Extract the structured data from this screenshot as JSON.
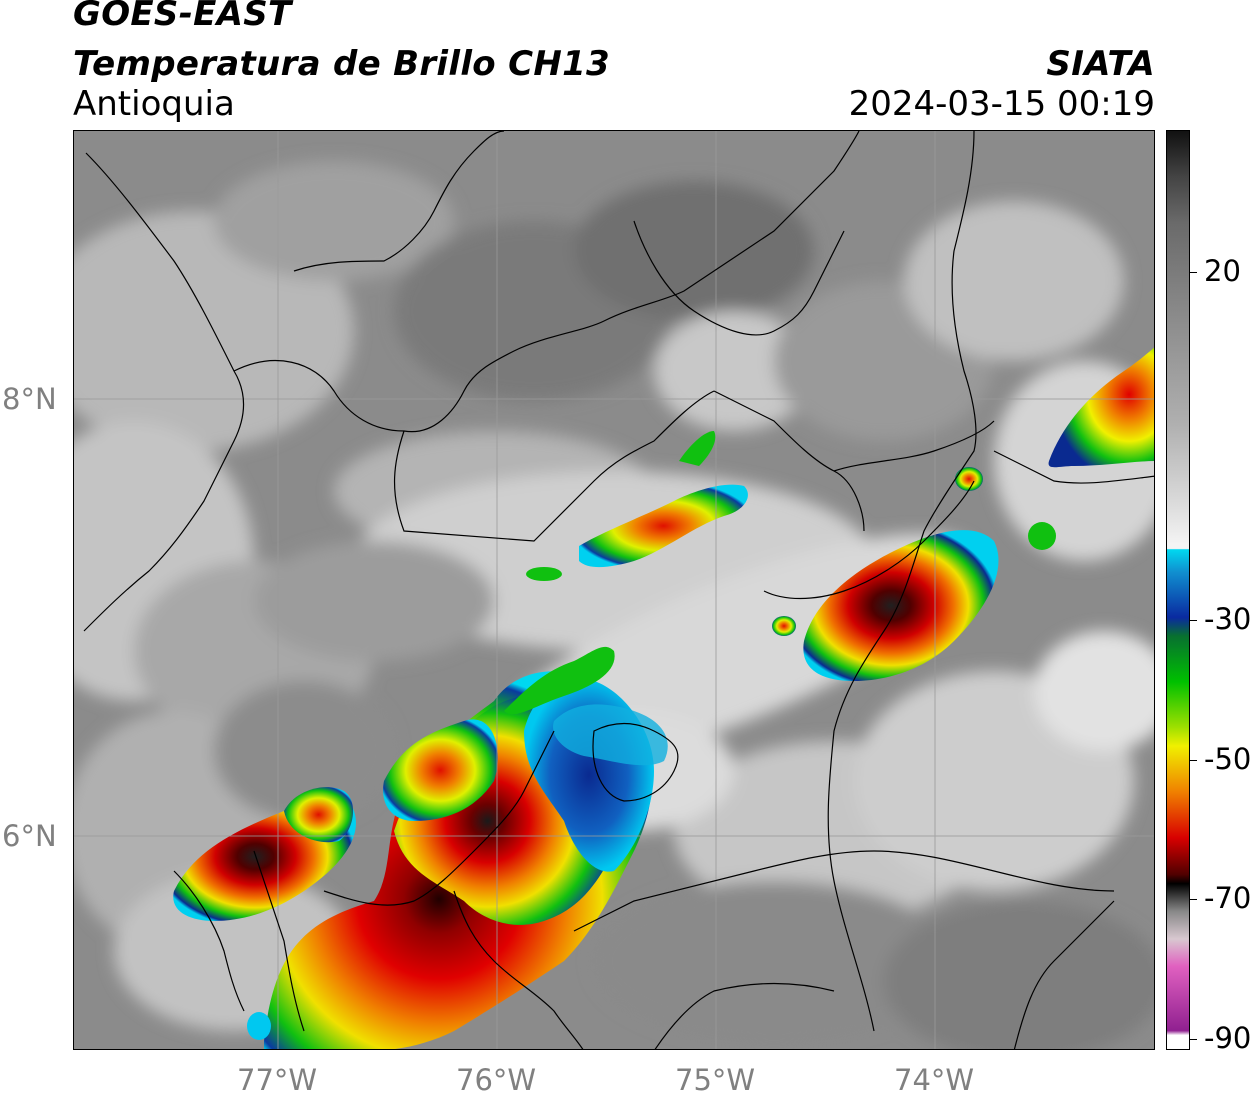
{
  "header": {
    "satellite": "GOES-EAST",
    "product": "Temperatura de Brillo CH13",
    "region": "Antioquia",
    "source": "SIATA",
    "datetime": "2024-03-15 00:19"
  },
  "map": {
    "lat_labels": [
      "8°N",
      "6°N"
    ],
    "lon_labels": [
      "77°W",
      "76°W",
      "75°W",
      "74°W"
    ]
  },
  "colorbar": {
    "labels": [
      "20",
      "-30",
      "-50",
      "-70",
      "-90"
    ],
    "colors": {
      "black": "#111111",
      "white": "#f4f4f4",
      "cyan": "#00d8f0",
      "blue": "#0a2aa0",
      "green": "#00c000",
      "yellow": "#f0f000",
      "orange": "#f08000",
      "red": "#d80000",
      "darkred": "#500000",
      "pink": "#e060c0",
      "purple": "#902090"
    }
  }
}
